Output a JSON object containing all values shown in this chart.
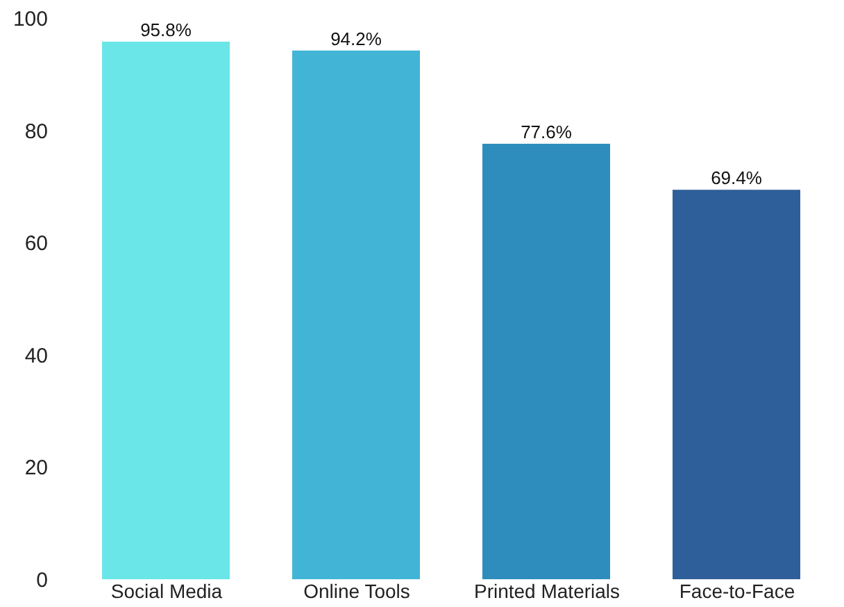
{
  "chart_data": {
    "type": "bar",
    "categories": [
      "Social Media",
      "Online Tools",
      "Printed Materials",
      "Face-to-Face"
    ],
    "values": [
      95.8,
      94.2,
      77.6,
      69.4
    ],
    "colors": [
      "#6ae6e9",
      "#42b4d6",
      "#2e8dbd",
      "#2e5f9a"
    ],
    "value_labels": [
      "95.8%",
      "94.2%",
      "77.6%",
      "69.4%"
    ],
    "ylim": [
      0,
      100
    ],
    "yticks": [
      0,
      20,
      40,
      60,
      80,
      100
    ],
    "grid": false
  }
}
